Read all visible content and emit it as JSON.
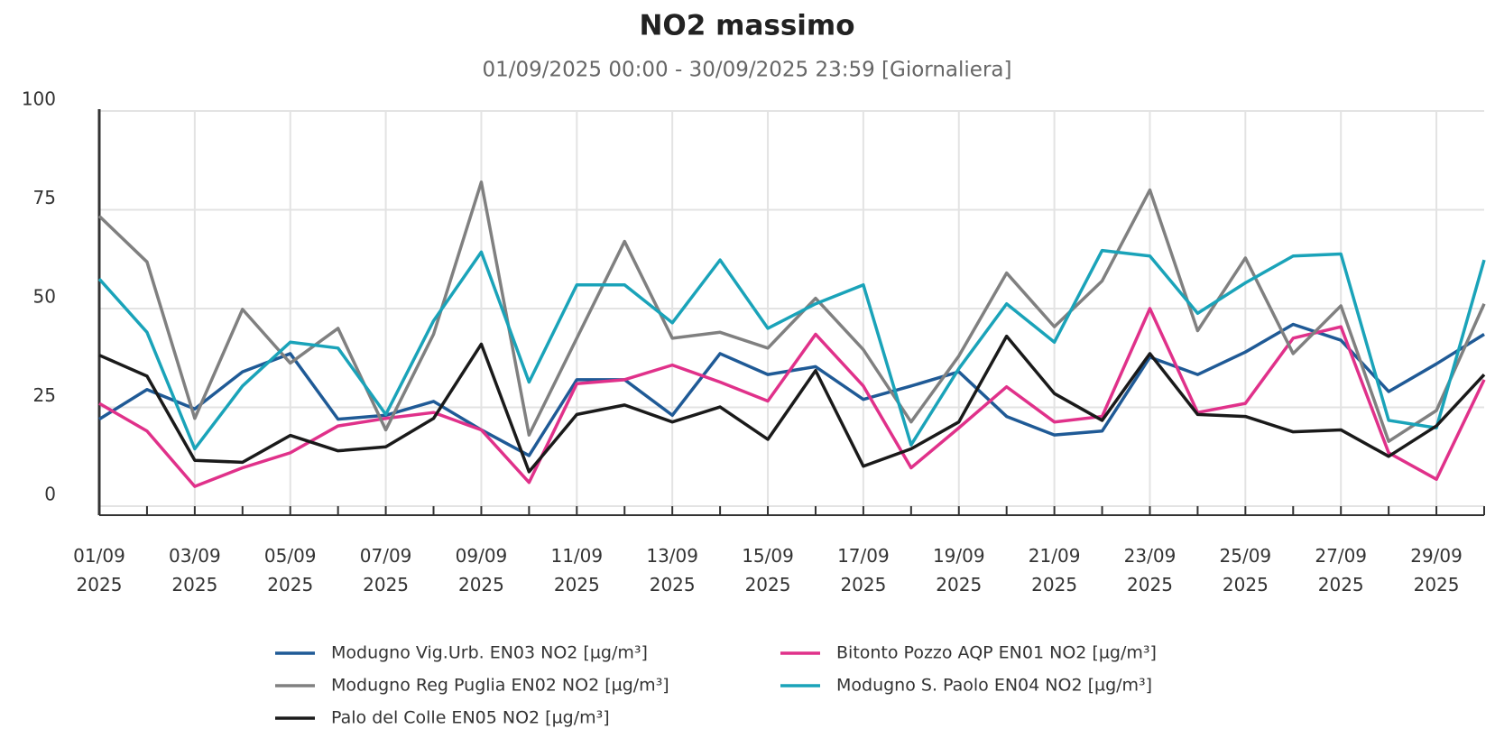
{
  "chart_data": {
    "type": "line",
    "title": "NO2 massimo",
    "subtitle": "01/09/2025 00:00 - 30/09/2025 23:59 [Giornaliera]",
    "categories": [
      "01/09 2025",
      null,
      "03/09 2025",
      null,
      "05/09 2025",
      null,
      "07/09 2025",
      null,
      "09/09 2025",
      null,
      "11/09 2025",
      null,
      "13/09 2025",
      null,
      "15/09 2025",
      null,
      "17/09 2025",
      null,
      "19/09 2025",
      null,
      "21/09 2025",
      null,
      "23/09 2025",
      null,
      "25/09 2025",
      null,
      "27/09 2025",
      null,
      "29/09 2025",
      null
    ],
    "ylim": [
      0,
      100
    ],
    "yticks": [
      0,
      25,
      50,
      75,
      100
    ],
    "grid": true,
    "series": [
      {
        "name": "Modugno Vig.Urb. EN03 NO2 [µg/m³]",
        "color": "#1f5a96",
        "values": [
          22,
          29.5,
          24.6,
          34,
          38.6,
          22,
          23,
          26.5,
          19.3,
          12.8,
          32,
          32,
          23,
          38.6,
          33.3,
          35.3,
          27,
          30.4,
          34,
          22.7,
          18,
          19,
          37.7,
          33.3,
          39,
          46,
          42,
          29,
          36,
          43.5
        ]
      },
      {
        "name": "Bitonto Pozzo AQP EN01 NO2 [µg/m³]",
        "color": "#e0318a",
        "values": [
          26,
          19,
          5,
          9.7,
          13.5,
          20.3,
          22.2,
          23.7,
          19.3,
          6,
          31,
          32,
          35.7,
          31.4,
          26.6,
          43.5,
          30.4,
          9.7,
          19.8,
          30.2,
          21.3,
          22.7,
          50,
          23.7,
          26,
          42.5,
          45.4,
          13.5,
          6.8,
          32
        ]
      },
      {
        "name": "Modugno Reg Puglia EN02 NO2 [µg/m³]",
        "color": "#808080",
        "values": [
          73.4,
          61.8,
          22.2,
          49.8,
          36.2,
          45,
          19.3,
          43.5,
          82,
          18,
          42.5,
          67,
          42.5,
          44,
          40,
          52.6,
          39.6,
          21.3,
          38,
          59,
          45.4,
          57,
          80,
          44.4,
          62.8,
          38.6,
          50.7,
          16.4,
          24.2,
          51.2
        ]
      },
      {
        "name": "Modugno S. Paolo EN04 NO2 [µg/m³]",
        "color": "#1aa3b9",
        "values": [
          57.5,
          44,
          14.5,
          30.4,
          41.5,
          40,
          23.2,
          46.9,
          64.3,
          31.4,
          56,
          56,
          46.4,
          62.3,
          45,
          51.2,
          56,
          15.5,
          34.8,
          51.2,
          41.5,
          64.7,
          63.3,
          48.8,
          56.5,
          63.3,
          63.8,
          21.7,
          19.8,
          62.3
        ]
      },
      {
        "name": "Palo del Colle EN05 NO2 [µg/m³]",
        "color": "#1a1a1a",
        "values": [
          38.2,
          32.9,
          11.6,
          11.1,
          17.9,
          14,
          15,
          22.2,
          41,
          8.7,
          23.2,
          25.6,
          21.3,
          25.1,
          16.9,
          34.3,
          10.1,
          14.5,
          21.3,
          43,
          28.5,
          21.7,
          38.6,
          23.2,
          22.7,
          18.8,
          19.3,
          12.6,
          20.3,
          33.3
        ]
      }
    ]
  }
}
